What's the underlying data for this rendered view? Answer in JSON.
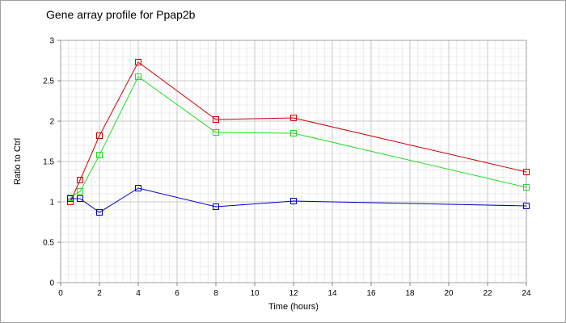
{
  "chart_data": {
    "type": "line",
    "title": "Gene array profile for Ppap2b",
    "xlabel": "Time (hours)",
    "ylabel": "Ratio to Ctrl",
    "xlim": [
      0,
      24
    ],
    "ylim": [
      0,
      3
    ],
    "xticks": [
      0,
      2,
      4,
      6,
      8,
      10,
      12,
      14,
      16,
      18,
      20,
      22,
      24
    ],
    "yticks": [
      0,
      0.5,
      1,
      1.5,
      2,
      2.5,
      3
    ],
    "xtick_labels": [
      "0",
      "2",
      "4",
      "6",
      "8",
      "10",
      "12",
      "14",
      "16",
      "18",
      "20",
      "22",
      "24"
    ],
    "ytick_labels": [
      "0",
      "0.5",
      "1",
      "1.5",
      "2",
      "2.5",
      "3"
    ],
    "grid": true,
    "marker": "square",
    "series": [
      {
        "color": "#cc0000",
        "x": [
          0.5,
          1,
          2,
          4,
          8,
          12,
          24
        ],
        "y": [
          1.0,
          1.27,
          1.82,
          2.73,
          2.02,
          2.04,
          1.37
        ]
      },
      {
        "color": "#22dd22",
        "x": [
          0.5,
          1,
          2,
          4,
          8,
          12,
          24
        ],
        "y": [
          1.05,
          1.13,
          1.58,
          2.55,
          1.86,
          1.85,
          1.18
        ]
      },
      {
        "color": "#0000cc",
        "x": [
          0.5,
          1,
          2,
          4,
          8,
          12,
          24
        ],
        "y": [
          1.04,
          1.04,
          0.87,
          1.17,
          0.94,
          1.01,
          0.95
        ]
      }
    ]
  }
}
